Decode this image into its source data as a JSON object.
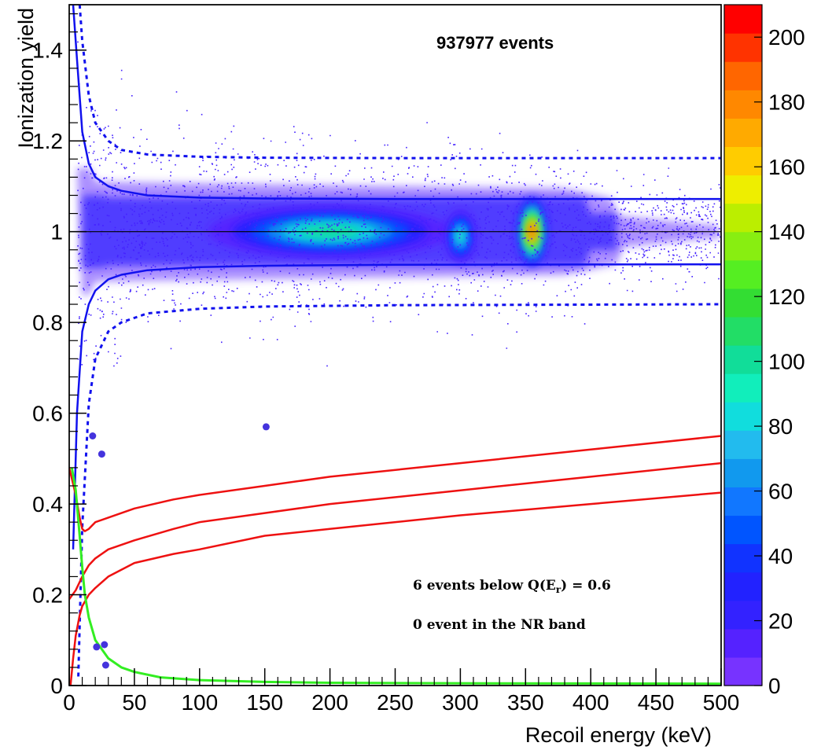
{
  "chart_data": {
    "type": "heatmap",
    "title": "",
    "xlabel": "Recoil energy (keV)",
    "ylabel": "Ionization yield",
    "xlim": [
      0,
      500
    ],
    "ylim": [
      0,
      1.5
    ],
    "x_tick_labels": [
      "0",
      "50",
      "100",
      "150",
      "200",
      "250",
      "300",
      "350",
      "400",
      "450",
      "500"
    ],
    "x_ticks": [
      0,
      50,
      100,
      150,
      200,
      250,
      300,
      350,
      400,
      450,
      500
    ],
    "y_tick_labels": [
      "0",
      "0.2",
      "0.4",
      "0.6",
      "0.8",
      "1",
      "1.2",
      "1.4"
    ],
    "y_ticks": [
      0,
      0.2,
      0.4,
      0.6,
      0.8,
      1.0,
      1.2,
      1.4
    ],
    "colorbar": {
      "range": [
        0,
        210
      ],
      "tick_labels": [
        "0",
        "20",
        "40",
        "60",
        "80",
        "100",
        "120",
        "140",
        "160",
        "180",
        "200"
      ],
      "ticks": [
        0,
        20,
        40,
        60,
        80,
        100,
        120,
        140,
        160,
        180,
        200
      ],
      "palette": [
        "#7733ff",
        "#5522ff",
        "#3322ff",
        "#2222ff",
        "#1133ff",
        "#0055ff",
        "#1177ff",
        "#1199ee",
        "#22bbee",
        "#11dddd",
        "#11eebb",
        "#11dd99",
        "#22dd66",
        "#33dd33",
        "#55ee22",
        "#88ee11",
        "#bbee00",
        "#eeee00",
        "#ffcc00",
        "#ffaa00",
        "#ff8800",
        "#ff6600",
        "#ff3300",
        "#ff0000"
      ]
    },
    "annotations": {
      "events_count": "937977 events",
      "below_threshold": "6 events below Q(E",
      "below_threshold_sub": "r",
      "below_threshold_tail": ") = 0.6",
      "nr_band": "0 event in the NR band"
    },
    "density_clusters": [
      {
        "x": 200,
        "y": 1.0,
        "sx": 48,
        "sy": 0.03,
        "peak": 110
      },
      {
        "x": 300,
        "y": 0.99,
        "sx": 6,
        "sy": 0.03,
        "peak": 100
      },
      {
        "x": 355,
        "y": 1.0,
        "sx": 6,
        "sy": 0.04,
        "peak": 210
      }
    ],
    "series": [
      {
        "name": "",
        "style": "blue-solid-upper",
        "x": [
          3,
          6,
          10,
          15,
          20,
          30,
          40,
          60,
          100,
          150,
          250,
          500
        ],
        "y": [
          1.5,
          1.38,
          1.22,
          1.15,
          1.12,
          1.1,
          1.09,
          1.08,
          1.075,
          1.073,
          1.072,
          1.072
        ]
      },
      {
        "name": "",
        "style": "blue-solid-lower",
        "x": [
          3,
          6,
          10,
          15,
          20,
          30,
          40,
          60,
          100,
          150,
          250,
          500
        ],
        "y": [
          0.3,
          0.6,
          0.78,
          0.84,
          0.87,
          0.895,
          0.905,
          0.915,
          0.922,
          0.925,
          0.927,
          0.928
        ]
      },
      {
        "name": "",
        "style": "blue-dashed-upper",
        "x": [
          8,
          10,
          15,
          20,
          30,
          40,
          60,
          100,
          150,
          250,
          500
        ],
        "y": [
          1.5,
          1.42,
          1.3,
          1.24,
          1.2,
          1.18,
          1.17,
          1.165,
          1.163,
          1.162,
          1.162
        ]
      },
      {
        "name": "",
        "style": "blue-dashed-lower",
        "x": [
          7,
          10,
          15,
          20,
          30,
          40,
          60,
          100,
          150,
          250,
          500
        ],
        "y": [
          0.02,
          0.35,
          0.62,
          0.72,
          0.78,
          0.8,
          0.82,
          0.83,
          0.835,
          0.838,
          0.84
        ]
      },
      {
        "name": "",
        "style": "red-upper",
        "x": [
          0,
          5,
          8,
          10,
          12,
          15,
          20,
          30,
          50,
          80,
          100,
          150,
          200,
          300,
          400,
          500
        ],
        "y": [
          0.48,
          0.42,
          0.37,
          0.345,
          0.34,
          0.345,
          0.36,
          0.37,
          0.39,
          0.41,
          0.42,
          0.44,
          0.46,
          0.49,
          0.52,
          0.55
        ]
      },
      {
        "name": "",
        "style": "red-middle",
        "x": [
          0,
          5,
          10,
          15,
          20,
          30,
          50,
          80,
          100,
          150,
          200,
          300,
          400,
          500
        ],
        "y": [
          0.19,
          0.21,
          0.24,
          0.265,
          0.28,
          0.3,
          0.32,
          0.345,
          0.36,
          0.38,
          0.4,
          0.43,
          0.46,
          0.49
        ]
      },
      {
        "name": "",
        "style": "red-lower",
        "x": [
          1,
          3,
          5,
          8,
          10,
          15,
          20,
          30,
          50,
          80,
          100,
          150,
          200,
          300,
          400,
          500
        ],
        "y": [
          0.0,
          0.06,
          0.11,
          0.155,
          0.175,
          0.2,
          0.215,
          0.24,
          0.27,
          0.29,
          0.3,
          0.33,
          0.345,
          0.375,
          0.4,
          0.425
        ]
      },
      {
        "name": "",
        "style": "green",
        "x": [
          2,
          5,
          8,
          10,
          12,
          15,
          20,
          25,
          30,
          40,
          50,
          70,
          100,
          150,
          200,
          300,
          500
        ],
        "y": [
          0.48,
          0.43,
          0.33,
          0.26,
          0.2,
          0.15,
          0.1,
          0.08,
          0.06,
          0.04,
          0.03,
          0.018,
          0.012,
          0.008,
          0.006,
          0.005,
          0.004
        ]
      }
    ],
    "outlier_points": [
      {
        "x": 18,
        "y": 0.55
      },
      {
        "x": 25,
        "y": 0.51
      },
      {
        "x": 151,
        "y": 0.57
      },
      {
        "x": 21,
        "y": 0.085
      },
      {
        "x": 27,
        "y": 0.09
      },
      {
        "x": 28,
        "y": 0.045
      }
    ],
    "reference_line_y": 1.0,
    "grid": false,
    "legend": "none"
  }
}
